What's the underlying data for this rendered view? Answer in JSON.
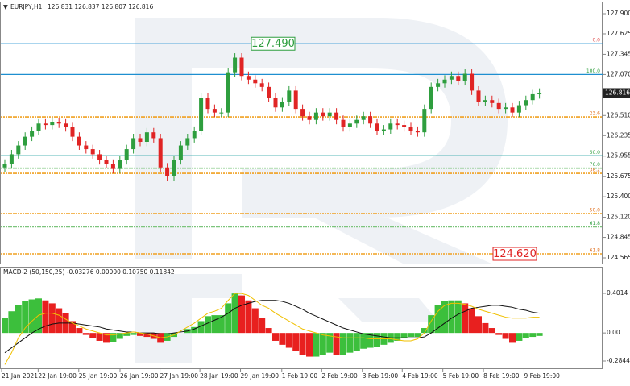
{
  "chart_data": [
    {
      "type": "candlestick",
      "symbol": "EURJPY,H1",
      "ohlc_text": "126.831 126.837 126.807 126.816",
      "open": [
        125.8,
        125.85,
        125.98,
        126.1,
        126.22,
        126.3,
        126.4,
        126.38,
        126.42,
        126.4,
        126.35,
        126.22,
        126.1,
        126.05,
        125.98,
        125.9,
        125.85,
        125.78,
        125.9,
        126.05,
        126.2,
        126.15,
        126.28,
        126.2,
        125.8,
        125.68,
        125.9,
        126.1,
        126.2,
        126.3,
        126.75,
        126.6,
        126.55,
        126.55,
        127.1,
        127.3,
        127.05,
        127.0,
        126.95,
        126.9,
        126.75,
        126.62,
        126.7,
        126.85,
        126.6,
        126.5,
        126.45,
        126.55,
        126.5,
        126.55,
        126.45,
        126.35,
        126.4,
        126.45,
        126.5,
        126.4,
        126.3,
        126.32,
        126.4,
        126.38,
        126.35,
        126.3,
        126.28,
        126.6,
        126.9,
        126.95,
        127.0,
        127.05,
        126.98,
        127.08,
        126.85,
        126.7,
        126.72,
        126.68,
        126.6,
        126.62,
        126.55,
        126.65,
        126.72,
        126.8
      ],
      "high": [
        125.91,
        126.04,
        126.16,
        126.28,
        126.36,
        126.46,
        126.46,
        126.48,
        126.48,
        126.46,
        126.41,
        126.28,
        126.16,
        126.11,
        126.04,
        125.96,
        125.91,
        125.96,
        126.11,
        126.26,
        126.26,
        126.34,
        126.34,
        126.26,
        125.86,
        125.96,
        126.16,
        126.26,
        126.36,
        126.81,
        126.81,
        126.66,
        126.61,
        127.16,
        127.36,
        127.36,
        127.11,
        127.06,
        127.01,
        126.96,
        126.81,
        126.76,
        126.91,
        126.91,
        126.66,
        126.56,
        126.61,
        126.61,
        126.61,
        126.61,
        126.51,
        126.46,
        126.51,
        126.56,
        126.56,
        126.46,
        126.38,
        126.46,
        126.46,
        126.44,
        126.41,
        126.36,
        126.66,
        126.96,
        127.01,
        127.06,
        127.11,
        127.11,
        127.14,
        127.14,
        126.91,
        126.78,
        126.78,
        126.74,
        126.68,
        126.68,
        126.71,
        126.78,
        126.86,
        126.88
      ],
      "low": [
        125.74,
        125.79,
        125.92,
        126.04,
        126.16,
        126.24,
        126.32,
        126.32,
        126.34,
        126.29,
        126.16,
        126.04,
        125.99,
        125.92,
        125.84,
        125.79,
        125.72,
        125.72,
        125.84,
        125.99,
        126.09,
        126.09,
        126.14,
        125.74,
        125.62,
        125.62,
        125.84,
        126.04,
        126.14,
        126.24,
        126.54,
        126.49,
        126.49,
        126.49,
        127.04,
        126.99,
        126.94,
        126.89,
        126.84,
        126.69,
        126.56,
        126.56,
        126.64,
        126.54,
        126.44,
        126.39,
        126.39,
        126.44,
        126.44,
        126.39,
        126.29,
        126.29,
        126.34,
        126.39,
        126.34,
        126.24,
        126.24,
        126.26,
        126.32,
        126.29,
        126.24,
        126.22,
        126.22,
        126.54,
        126.84,
        126.89,
        126.94,
        126.92,
        126.92,
        126.79,
        126.64,
        126.64,
        126.62,
        126.54,
        126.54,
        126.49,
        126.49,
        126.59,
        126.66,
        126.74
      ],
      "close": [
        125.85,
        125.98,
        126.1,
        126.22,
        126.3,
        126.4,
        126.38,
        126.42,
        126.4,
        126.35,
        126.22,
        126.1,
        126.05,
        125.98,
        125.9,
        125.85,
        125.78,
        125.9,
        126.05,
        126.2,
        126.15,
        126.28,
        126.2,
        125.8,
        125.68,
        125.9,
        126.1,
        126.2,
        126.3,
        126.75,
        126.6,
        126.55,
        126.55,
        127.1,
        127.3,
        127.05,
        127.0,
        126.95,
        126.9,
        126.75,
        126.62,
        126.7,
        126.85,
        126.6,
        126.5,
        126.45,
        126.55,
        126.5,
        126.55,
        126.45,
        126.35,
        126.4,
        126.45,
        126.5,
        126.4,
        126.3,
        126.32,
        126.4,
        126.38,
        126.35,
        126.3,
        126.28,
        126.6,
        126.9,
        126.95,
        127.0,
        127.05,
        126.98,
        127.08,
        126.85,
        126.7,
        126.72,
        126.68,
        126.6,
        126.62,
        126.55,
        126.65,
        126.72,
        126.8,
        126.816
      ],
      "up_color": "#2e9e3e",
      "down_color": "#e02424",
      "ylim": [
        124.488,
        128.065
      ],
      "yticks": [
        {
          "value": 127.9,
          "label": "127.900"
        },
        {
          "value": 127.625,
          "label": "127.625"
        },
        {
          "value": 127.345,
          "label": "127.345"
        },
        {
          "value": 127.07,
          "label": "127.070"
        },
        {
          "value": 126.79,
          "label": "126.790"
        },
        {
          "value": 126.51,
          "label": "126.510"
        },
        {
          "value": 126.235,
          "label": "126.235"
        },
        {
          "value": 125.955,
          "label": "125.955"
        },
        {
          "value": 125.675,
          "label": "125.675"
        },
        {
          "value": 125.4,
          "label": "125.400"
        },
        {
          "value": 125.12,
          "label": "125.120"
        },
        {
          "value": 124.845,
          "label": "124.845"
        },
        {
          "value": 124.565,
          "label": "124.565"
        }
      ],
      "xticks": [
        {
          "value": 0,
          "label": "21 Jan 2021"
        },
        {
          "value": 5.4,
          "label": "22 Jan 19:00"
        },
        {
          "value": 11.4,
          "label": "25 Jan 19:00"
        },
        {
          "value": 17.5,
          "label": "26 Jan 19:00"
        },
        {
          "value": 23.4,
          "label": "27 Jan 19:00"
        },
        {
          "value": 29.3,
          "label": "28 Jan 19:00"
        },
        {
          "value": 35.3,
          "label": "29 Jan 19:00"
        },
        {
          "value": 41.4,
          "label": "1 Feb 19:00"
        },
        {
          "value": 47.3,
          "label": "2 Feb 19:00"
        },
        {
          "value": 53.3,
          "label": "3 Feb 19:00"
        },
        {
          "value": 59.2,
          "label": "4 Feb 19:00"
        },
        {
          "value": 65.2,
          "label": "5 Feb 19:00"
        },
        {
          "value": 71.2,
          "label": "8 Feb 19:00"
        },
        {
          "value": 77.2,
          "label": "9 Feb 19:00"
        }
      ],
      "levels": [
        {
          "value": 127.49,
          "label": "0.0",
          "color": "#1e8fd0",
          "label_color": "#e05050",
          "style": "solid"
        },
        {
          "value": 127.07,
          "label": "100.0",
          "color": "#1e8fd0",
          "label_color": "#2e9e3e",
          "style": "solid"
        },
        {
          "value": 126.49,
          "label": "23.6",
          "color": "#f0a020",
          "label_color": "#e07020",
          "style": "dotted"
        },
        {
          "value": 125.96,
          "label": "50.0",
          "color": "#20a0a0",
          "label_color": "#2e9e3e",
          "style": "solid"
        },
        {
          "value": 125.79,
          "label": "76.0",
          "color": "#7cc47c",
          "label_color": "#2e9e3e",
          "style": "dotted"
        },
        {
          "value": 125.72,
          "label": "38.2",
          "color": "#f0a020",
          "label_color": "#e07020",
          "style": "dotted"
        },
        {
          "value": 125.17,
          "label": "50.0",
          "color": "#f0a020",
          "label_color": "#e07020",
          "style": "dotted"
        },
        {
          "value": 124.99,
          "label": "61.8",
          "color": "#7cc47c",
          "label_color": "#2e9e3e",
          "style": "dotted"
        },
        {
          "value": 124.62,
          "label": "61.8",
          "color": "#f0a020",
          "label_color": "#e07020",
          "style": "dotted"
        }
      ],
      "annotations": [
        {
          "value": 127.49,
          "label": "127.490",
          "color": "#2e9e3e"
        },
        {
          "value": 124.62,
          "label": "124.620",
          "color": "#e02424"
        }
      ],
      "last_price": 126.816
    },
    {
      "type": "macd",
      "title": "MACD-2 (50,150,25) -0.03276 0.00000 0.10750 0.11842",
      "ylim": [
        -0.3579,
        0.6708
      ],
      "yticks": [
        0.4014,
        {
          "value": 0,
          "label": "0.00"
        },
        -0.2844
      ],
      "histogram": [
        0.15,
        0.22,
        0.28,
        0.32,
        0.34,
        0.35,
        0.33,
        0.3,
        0.25,
        0.2,
        0.12,
        0.05,
        -0.02,
        -0.05,
        -0.08,
        -0.1,
        -0.09,
        -0.06,
        -0.03,
        -0.02,
        -0.03,
        -0.04,
        -0.06,
        -0.1,
        -0.08,
        -0.04,
        0.0,
        0.04,
        0.06,
        0.12,
        0.17,
        0.18,
        0.18,
        0.3,
        0.4,
        0.38,
        0.33,
        0.25,
        0.15,
        0.05,
        -0.08,
        -0.12,
        -0.15,
        -0.18,
        -0.22,
        -0.24,
        -0.24,
        -0.22,
        -0.2,
        -0.22,
        -0.22,
        -0.2,
        -0.18,
        -0.16,
        -0.15,
        -0.14,
        -0.12,
        -0.1,
        -0.08,
        -0.05,
        -0.04,
        -0.04,
        0.05,
        0.18,
        0.28,
        0.32,
        0.33,
        0.33,
        0.3,
        0.25,
        0.17,
        0.1,
        0.05,
        -0.02,
        -0.06,
        -0.1,
        -0.08,
        -0.05,
        -0.04,
        -0.03
      ],
      "rise_color": "#3cbf3c",
      "fall_color": "#e8201f",
      "series": [
        {
          "color": "#111111",
          "values": [
            -0.2,
            -0.15,
            -0.1,
            -0.05,
            0.0,
            0.04,
            0.07,
            0.09,
            0.1,
            0.1,
            0.1,
            0.09,
            0.08,
            0.07,
            0.06,
            0.04,
            0.03,
            0.02,
            0.01,
            0.01,
            0.0,
            0.0,
            0.0,
            -0.01,
            -0.01,
            0.0,
            0.01,
            0.02,
            0.04,
            0.07,
            0.1,
            0.13,
            0.16,
            0.2,
            0.25,
            0.28,
            0.3,
            0.32,
            0.33,
            0.33,
            0.33,
            0.32,
            0.3,
            0.27,
            0.24,
            0.2,
            0.17,
            0.14,
            0.11,
            0.08,
            0.05,
            0.03,
            0.01,
            -0.01,
            -0.02,
            -0.03,
            -0.04,
            -0.05,
            -0.05,
            -0.05,
            -0.05,
            -0.05,
            -0.04,
            0.0,
            0.05,
            0.1,
            0.15,
            0.19,
            0.22,
            0.25,
            0.26,
            0.27,
            0.28,
            0.28,
            0.27,
            0.26,
            0.24,
            0.23,
            0.21,
            0.2
          ]
        },
        {
          "color": "#f0c000",
          "values": [
            -0.32,
            -0.2,
            -0.05,
            0.05,
            0.12,
            0.18,
            0.2,
            0.2,
            0.18,
            0.14,
            0.1,
            0.07,
            0.04,
            0.02,
            0.0,
            -0.02,
            -0.02,
            -0.01,
            0.0,
            0.01,
            0.0,
            -0.01,
            -0.03,
            -0.05,
            -0.04,
            -0.02,
            0.02,
            0.06,
            0.1,
            0.15,
            0.2,
            0.22,
            0.25,
            0.33,
            0.4,
            0.4,
            0.38,
            0.33,
            0.28,
            0.25,
            0.2,
            0.16,
            0.12,
            0.08,
            0.04,
            0.02,
            0.0,
            -0.02,
            -0.03,
            -0.04,
            -0.05,
            -0.05,
            -0.05,
            -0.05,
            -0.06,
            -0.06,
            -0.06,
            -0.06,
            -0.07,
            -0.08,
            -0.08,
            -0.06,
            0.0,
            0.12,
            0.22,
            0.28,
            0.3,
            0.3,
            0.29,
            0.27,
            0.24,
            0.22,
            0.2,
            0.18,
            0.16,
            0.15,
            0.15,
            0.15,
            0.16,
            0.16
          ]
        }
      ]
    }
  ]
}
